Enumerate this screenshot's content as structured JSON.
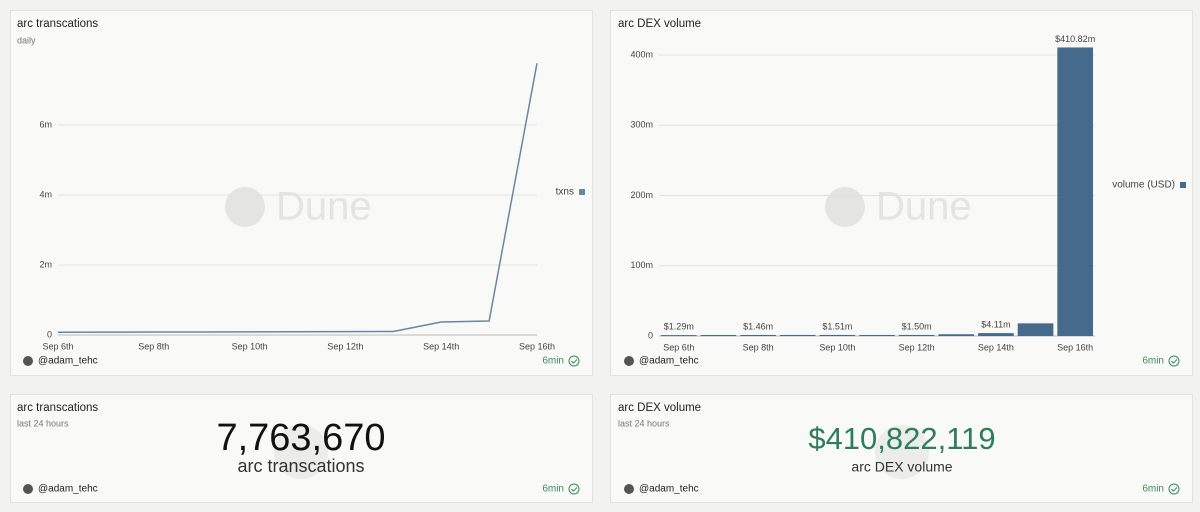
{
  "chart_data": [
    {
      "type": "line",
      "title": "arc transcations",
      "subtitle": "daily",
      "categories": [
        "Sep 6th",
        null,
        "Sep 8th",
        null,
        "Sep 10th",
        null,
        "Sep 12th",
        null,
        "Sep 14th",
        null,
        "Sep 16th"
      ],
      "series": [
        {
          "name": "txns",
          "color": "#6b85a5",
          "values": [
            80000,
            82000,
            84000,
            86000,
            88000,
            92000,
            96000,
            100000,
            370000,
            400000,
            7763670
          ]
        }
      ],
      "ylim": [
        0,
        8000000
      ],
      "yticks": [
        0,
        {
          "value": 2000000,
          "label": "2m"
        },
        {
          "value": 4000000,
          "label": "4m"
        },
        {
          "value": 6000000,
          "label": "6m"
        }
      ],
      "grid": true,
      "legend": "right",
      "watermark": "Dune",
      "author": "@adam_tehc",
      "age": "6min"
    },
    {
      "type": "bar",
      "title": "arc DEX volume",
      "categories": [
        "Sep 6th",
        null,
        "Sep 8th",
        null,
        "Sep 10th",
        null,
        "Sep 12th",
        null,
        "Sep 14th",
        null,
        "Sep 16th"
      ],
      "series": [
        {
          "name": "volume (USD)",
          "color": "#466a8c",
          "values": [
            1290000,
            1400000,
            1460000,
            1480000,
            1510000,
            1450000,
            1500000,
            2500000,
            4110000,
            18000000,
            410822119
          ],
          "value_labels": [
            "$1.29m",
            null,
            "$1.46m",
            null,
            "$1.51m",
            null,
            "$1.50m",
            null,
            "$4.11m",
            null,
            "$410.82m"
          ]
        }
      ],
      "ylim": [
        0,
        420000000
      ],
      "yticks": [
        0,
        {
          "value": 100000000,
          "label": "100m"
        },
        {
          "value": 200000000,
          "label": "200m"
        },
        {
          "value": 300000000,
          "label": "300m"
        },
        {
          "value": 400000000,
          "label": "400m"
        }
      ],
      "grid": true,
      "legend": "right",
      "watermark": "Dune",
      "author": "@adam_tehc",
      "age": "6min"
    }
  ],
  "counters": [
    {
      "title": "arc transcations",
      "subtitle": "last 24 hours",
      "value": "7,763,670",
      "label": "arc transcations",
      "color": "#111111",
      "author": "@adam_tehc",
      "age": "6min"
    },
    {
      "title": "arc DEX volume",
      "subtitle": "last 24 hours",
      "value": "$410,822,119",
      "label": "arc DEX volume",
      "color": "#2e7d5b",
      "author": "@adam_tehc",
      "age": "6min"
    }
  ]
}
